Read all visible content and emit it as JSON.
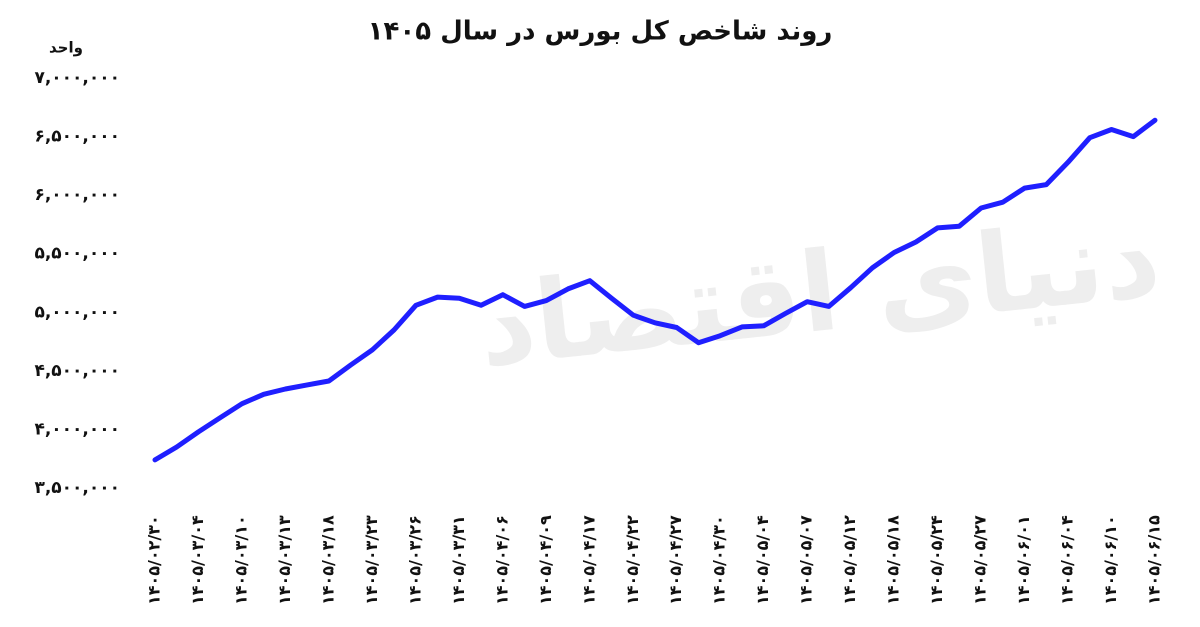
{
  "chart_data": {
    "type": "line",
    "title": "روند شاخص کل بورس در سال ۱۴۰۵",
    "y_label": "واحد",
    "watermark": "دنیای اقتصاد",
    "categories": [
      "۱۴۰۵/۰۲/۳۰",
      null,
      "۱۴۰۵/۰۳/۰۴",
      null,
      "۱۴۰۵/۰۳/۱۰",
      null,
      "۱۴۰۵/۰۳/۱۳",
      null,
      "۱۴۰۵/۰۳/۱۸",
      null,
      "۱۴۰۵/۰۳/۲۳",
      null,
      "۱۴۰۵/۰۳/۲۶",
      null,
      "۱۴۰۵/۰۳/۳۱",
      null,
      "۱۴۰۵/۰۴/۰۶",
      null,
      "۱۴۰۵/۰۴/۰۹",
      null,
      "۱۴۰۵/۰۴/۱۷",
      null,
      "۱۴۰۵/۰۴/۲۲",
      null,
      "۱۴۰۵/۰۴/۲۷",
      null,
      "۱۴۰۵/۰۴/۳۰",
      null,
      "۱۴۰۵/۰۵/۰۴",
      null,
      "۱۴۰۵/۰۵/۰۷",
      null,
      "۱۴۰۵/۰۵/۱۲",
      null,
      "۱۴۰۵/۰۵/۱۸",
      null,
      "۱۴۰۵/۰۵/۲۴",
      null,
      "۱۴۰۵/۰۵/۲۷",
      null,
      "۱۴۰۵/۰۶/۰۱",
      null,
      "۱۴۰۵/۰۶/۰۴",
      null,
      "۱۴۰۵/۰۶/۱۰",
      null,
      "۱۴۰۵/۰۶/۱۵"
    ],
    "values": [
      3740000,
      3850000,
      3980000,
      4100000,
      4220000,
      4300000,
      4345000,
      4380000,
      4413000,
      4550000,
      4680000,
      4850000,
      5060000,
      5130000,
      5120000,
      5060000,
      5150000,
      5050000,
      5100000,
      5200000,
      5270000,
      5120000,
      4975000,
      4910000,
      4870000,
      4740000,
      4800000,
      4875000,
      4885000,
      4990000,
      5090000,
      5050000,
      5210000,
      5380000,
      5510000,
      5600000,
      5720000,
      5735000,
      5890000,
      5940000,
      6060000,
      6090000,
      6280000,
      6490000,
      6560000,
      6500000,
      6640000
    ],
    "color": "#1f1fff",
    "ylim": [
      3500000,
      7000000
    ],
    "yticks": [
      {
        "value": 3500000,
        "label": "۳,۵۰۰,۰۰۰"
      },
      {
        "value": 4000000,
        "label": "۴,۰۰۰,۰۰۰"
      },
      {
        "value": 4500000,
        "label": "۴,۵۰۰,۰۰۰"
      },
      {
        "value": 5000000,
        "label": "۵,۰۰۰,۰۰۰"
      },
      {
        "value": 5500000,
        "label": "۵,۵۰۰,۰۰۰"
      },
      {
        "value": 6000000,
        "label": "۶,۰۰۰,۰۰۰"
      },
      {
        "value": 6500000,
        "label": "۶,۵۰۰,۰۰۰"
      },
      {
        "value": 7000000,
        "label": "۷,۰۰۰,۰۰۰"
      }
    ],
    "grid": false
  }
}
